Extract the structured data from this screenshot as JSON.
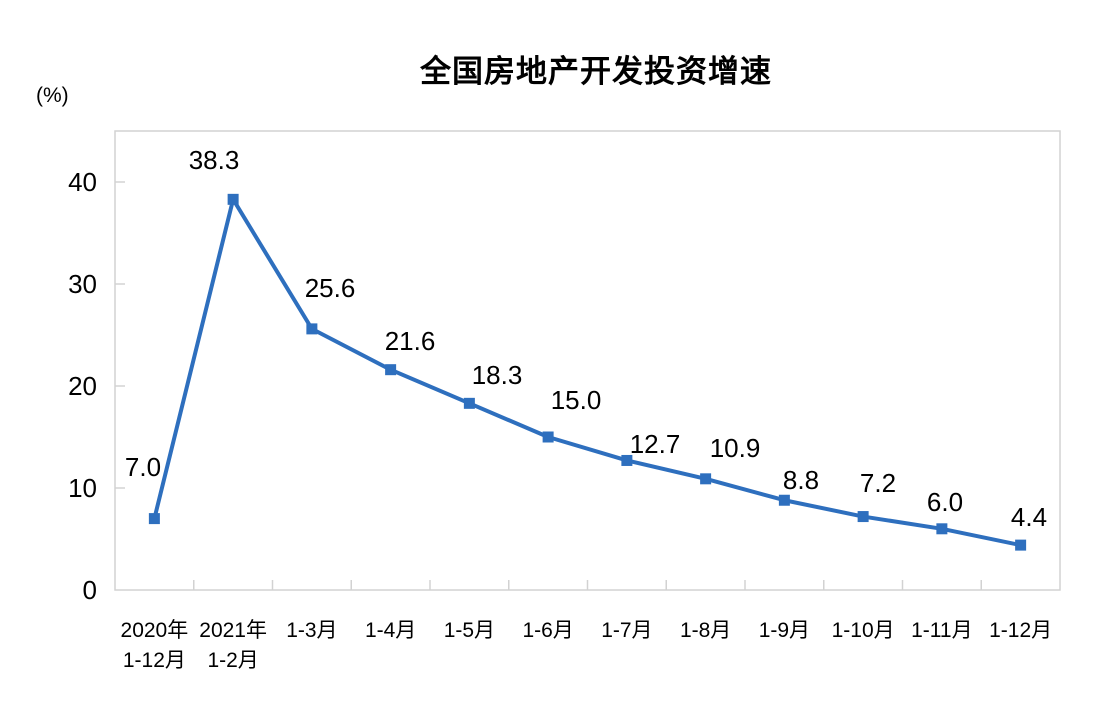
{
  "chart": {
    "title": "全国房地产开发投资增速",
    "unit": "(%)"
  },
  "chart_data": {
    "type": "line",
    "title": "全国房地产开发投资增速",
    "ylabel": "(%)",
    "xlabel": "",
    "categories": [
      "2020年\n1-12月",
      "2021年\n1-2月",
      "1-3月",
      "1-4月",
      "1-5月",
      "1-6月",
      "1-7月",
      "1-8月",
      "1-9月",
      "1-10月",
      "1-11月",
      "1-12月"
    ],
    "values": [
      7.0,
      38.3,
      25.6,
      21.6,
      18.3,
      15.0,
      12.7,
      10.9,
      8.8,
      7.2,
      6.0,
      4.4
    ],
    "data_labels": [
      "7.0",
      "38.3",
      "25.6",
      "21.6",
      "18.3",
      "15.0",
      "12.7",
      "10.9",
      "8.8",
      "7.2",
      "6.0",
      "4.4"
    ],
    "ylim": [
      0,
      45
    ],
    "yticks": [
      0,
      10,
      20,
      30,
      40
    ],
    "grid": false,
    "legend": "none",
    "line_color": "#2E6FBE",
    "marker": "square",
    "text_color": "#000000",
    "axis_color": "#D2D2D2"
  }
}
